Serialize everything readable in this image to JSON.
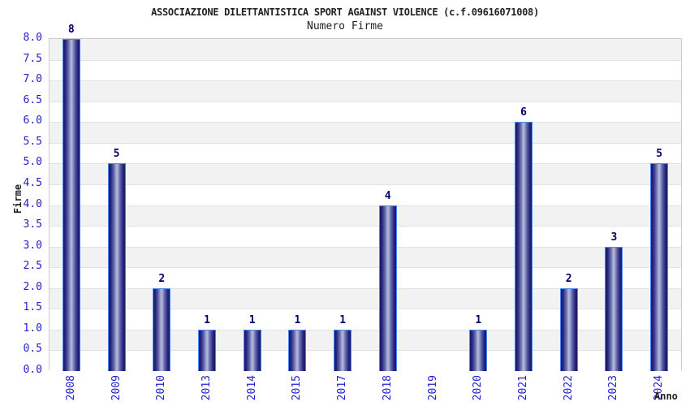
{
  "chart_data": {
    "type": "bar",
    "title": "ASSOCIAZIONE DILETTANTISTICA SPORT AGAINST VIOLENCE (c.f.09616071008)",
    "subtitle": "Numero Firme",
    "xlabel": "Anno",
    "ylabel": "Firme",
    "categories": [
      "2008",
      "2009",
      "2010",
      "2013",
      "2014",
      "2015",
      "2017",
      "2018",
      "2019",
      "2020",
      "2021",
      "2022",
      "2023",
      "2024"
    ],
    "values": [
      8,
      5,
      2,
      1,
      1,
      1,
      1,
      4,
      0,
      1,
      6,
      2,
      3,
      5
    ],
    "data_labels": [
      "8",
      "5",
      "2",
      "1",
      "1",
      "1",
      "1",
      "4",
      "",
      "1",
      "6",
      "2",
      "3",
      "5"
    ],
    "ylim": [
      0,
      8
    ],
    "ytick_step": 0.5,
    "yticks": [
      "0.0",
      "0.5",
      "1.0",
      "1.5",
      "2.0",
      "2.5",
      "3.0",
      "3.5",
      "4.0",
      "4.5",
      "5.0",
      "5.5",
      "6.0",
      "6.5",
      "7.0",
      "7.5",
      "8.0"
    ],
    "grid": "alternating horizontal bands every 0.5 units, gray band at top",
    "legend": "none",
    "colors": {
      "tick_label_blue": "#2222cc",
      "data_label_navy": "#000066",
      "bar_edge_dark": "#191970",
      "bar_mid": "#5d63a8",
      "bar_center_light": "#b9bdda",
      "bar_border": "#4a87ef",
      "band_gray": "#f2f2f2",
      "band_white": "#ffffff",
      "grid_line": "#e2e2e2",
      "plot_border": "#cccccc",
      "title_color": "#222222"
    }
  }
}
